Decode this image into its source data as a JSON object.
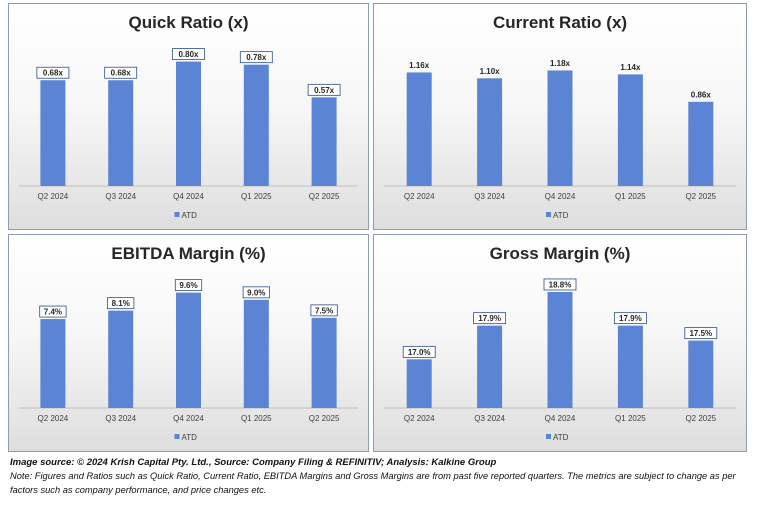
{
  "chart_data": [
    {
      "type": "bar",
      "title": "Quick Ratio  (x)",
      "categories": [
        "Q2 2024",
        "Q3 2024",
        "Q4 2024",
        "Q1 2025",
        "Q2 2025"
      ],
      "series": [
        {
          "name": "ATD",
          "values": [
            0.68,
            0.68,
            0.8,
            0.78,
            0.57
          ]
        }
      ],
      "data_labels": [
        "0.68x",
        "0.68x",
        "0.80x",
        "0.78x",
        "0.57x"
      ],
      "labels_boxed": true,
      "ylim": [
        0,
        0.9
      ],
      "grid": false,
      "legend_position": "bottom",
      "color": "#5b84d4"
    },
    {
      "type": "bar",
      "title": "Current Ratio  (x)",
      "categories": [
        "Q2 2024",
        "Q3 2024",
        "Q4 2024",
        "Q1 2025",
        "Q2 2025"
      ],
      "series": [
        {
          "name": "ATD",
          "values": [
            1.16,
            1.1,
            1.18,
            1.14,
            0.86
          ]
        }
      ],
      "data_labels": [
        "1.16x",
        "1.10x",
        "1.18x",
        "1.14x",
        "0.86x"
      ],
      "labels_boxed": false,
      "ylim": [
        0,
        1.43
      ],
      "grid": false,
      "legend_position": "bottom",
      "color": "#5b84d4"
    },
    {
      "type": "bar",
      "title": "EBITDA Margin (%)",
      "categories": [
        "Q2 2024",
        "Q3 2024",
        "Q4 2024",
        "Q1 2025",
        "Q2 2025"
      ],
      "series": [
        {
          "name": "ATD",
          "values": [
            7.4,
            8.1,
            9.6,
            9.0,
            7.5
          ]
        }
      ],
      "data_labels": [
        "7.4%",
        "8.1%",
        "9.6%",
        "9.0%",
        "7.5%"
      ],
      "labels_boxed": true,
      "ylim": [
        0,
        10.9
      ],
      "grid": false,
      "legend_position": "bottom",
      "color": "#5b84d4"
    },
    {
      "type": "bar",
      "title": "Gross Margin (%)",
      "categories": [
        "Q2 2024",
        "Q3 2024",
        "Q4 2024",
        "Q1 2025",
        "Q2 2025"
      ],
      "series": [
        {
          "name": "ATD",
          "values": [
            17.0,
            17.9,
            18.8,
            17.9,
            17.5
          ]
        }
      ],
      "data_labels": [
        "17.0%",
        "17.9%",
        "18.8%",
        "17.9%",
        "17.5%"
      ],
      "labels_boxed": true,
      "ylim": [
        15.7,
        19.2
      ],
      "grid": false,
      "legend_position": "bottom",
      "color": "#5b84d4"
    }
  ],
  "footer": {
    "source": "Image source: © 2024 Krish Capital Pty. Ltd., Source: Company Filing & REFINITIV; Analysis: Kalkine Group",
    "note": "Note: Figures and Ratios such as Quick Ratio, Current Ratio, EBITDA Margins and Gross Margins are from past five reported quarters. The metrics are subject to change as per factors such as company performance, and price changes etc."
  }
}
